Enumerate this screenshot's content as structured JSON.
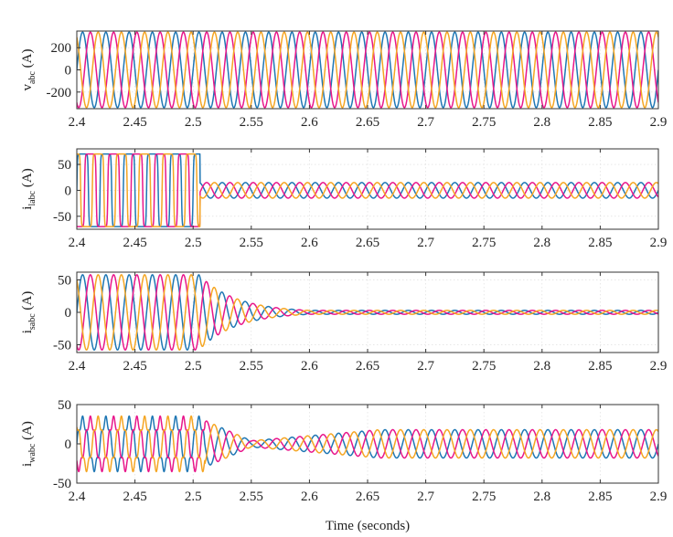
{
  "chart_data": [
    {
      "type": "line",
      "ylabel_main": "v",
      "ylabel_sub": "abc",
      "ylabel_unit": " (A)",
      "xlim": [
        2.4,
        2.9
      ],
      "ylim": [
        -350,
        350
      ],
      "xticks": [
        2.4,
        2.45,
        2.5,
        2.55,
        2.6,
        2.65,
        2.7,
        2.75,
        2.8,
        2.85,
        2.9
      ],
      "xtick_labels": [
        "2.4",
        "2.45",
        "2.5",
        "2.55",
        "2.6",
        "2.65",
        "2.7",
        "2.75",
        "2.8",
        "2.85",
        "2.9"
      ],
      "yticks": [
        -200,
        0,
        200
      ],
      "ytick_labels": [
        "-200",
        "0",
        "200"
      ],
      "grid": true,
      "frequency_hz": 50,
      "phase_colors": [
        "#1f77b4",
        "#e8178b",
        "#f5a623"
      ],
      "series": [
        {
          "phase_deg": 0,
          "segments": [
            {
              "t0": 2.4,
              "t1": 2.9,
              "amp_start": 340,
              "amp_end": 340
            }
          ]
        },
        {
          "phase_deg": -120,
          "segments": [
            {
              "t0": 2.4,
              "t1": 2.9,
              "amp_start": 340,
              "amp_end": 340
            }
          ]
        },
        {
          "phase_deg": 120,
          "segments": [
            {
              "t0": 2.4,
              "t1": 2.9,
              "amp_start": 340,
              "amp_end": 340
            }
          ]
        }
      ]
    },
    {
      "type": "line",
      "ylabel_main": "i",
      "ylabel_sub": "labc",
      "ylabel_unit": " (A)",
      "xlim": [
        2.4,
        2.9
      ],
      "ylim": [
        -75,
        80
      ],
      "xticks": [
        2.4,
        2.45,
        2.5,
        2.55,
        2.6,
        2.65,
        2.7,
        2.75,
        2.8,
        2.85,
        2.9
      ],
      "xtick_labels": [
        "2.4",
        "2.45",
        "2.5",
        "2.55",
        "2.6",
        "2.65",
        "2.7",
        "2.75",
        "2.8",
        "2.85",
        "2.9"
      ],
      "yticks": [
        -50,
        0,
        50
      ],
      "ytick_labels": [
        "-50",
        "0",
        "50"
      ],
      "grid": true,
      "frequency_hz": 50,
      "phase_colors": [
        "#1f77b4",
        "#e8178b",
        "#f5a623"
      ],
      "series": [
        {
          "phase_deg": 0,
          "segments": [
            {
              "t0": 2.4,
              "t1": 2.506,
              "amp_start": 70,
              "amp_end": 70,
              "shape": "square"
            },
            {
              "t0": 2.506,
              "t1": 2.9,
              "amp_start": 15,
              "amp_end": 15
            }
          ]
        },
        {
          "phase_deg": -120,
          "segments": [
            {
              "t0": 2.4,
              "t1": 2.506,
              "amp_start": 70,
              "amp_end": 70,
              "shape": "square"
            },
            {
              "t0": 2.506,
              "t1": 2.9,
              "amp_start": 15,
              "amp_end": 15
            }
          ]
        },
        {
          "phase_deg": 120,
          "segments": [
            {
              "t0": 2.4,
              "t1": 2.506,
              "amp_start": 70,
              "amp_end": 70,
              "shape": "square"
            },
            {
              "t0": 2.506,
              "t1": 2.9,
              "amp_start": 15,
              "amp_end": 15
            }
          ]
        }
      ]
    },
    {
      "type": "line",
      "ylabel_main": "i",
      "ylabel_sub": "sabc",
      "ylabel_unit": " (A)",
      "xlim": [
        2.4,
        2.9
      ],
      "ylim": [
        -62,
        62
      ],
      "xticks": [
        2.4,
        2.45,
        2.5,
        2.55,
        2.6,
        2.65,
        2.7,
        2.75,
        2.8,
        2.85,
        2.9
      ],
      "xtick_labels": [
        "2.4",
        "2.45",
        "2.5",
        "2.55",
        "2.6",
        "2.65",
        "2.7",
        "2.75",
        "2.8",
        "2.85",
        "2.9"
      ],
      "yticks": [
        -50,
        0,
        50
      ],
      "ytick_labels": [
        "-50",
        "0",
        "50"
      ],
      "grid": true,
      "frequency_hz": 50,
      "phase_colors": [
        "#1f77b4",
        "#e8178b",
        "#f5a623"
      ],
      "series": [
        {
          "phase_deg": 0,
          "segments": [
            {
              "t0": 2.4,
              "t1": 2.505,
              "amp_start": 58,
              "amp_end": 58
            },
            {
              "t0": 2.505,
              "t1": 2.6,
              "amp_start": 58,
              "amp_end": 3,
              "decay": "exp"
            },
            {
              "t0": 2.6,
              "t1": 2.9,
              "amp_start": 3,
              "amp_end": 3
            }
          ]
        },
        {
          "phase_deg": -120,
          "segments": [
            {
              "t0": 2.4,
              "t1": 2.505,
              "amp_start": 58,
              "amp_end": 58
            },
            {
              "t0": 2.505,
              "t1": 2.6,
              "amp_start": 58,
              "amp_end": 3,
              "decay": "exp"
            },
            {
              "t0": 2.6,
              "t1": 2.9,
              "amp_start": 3,
              "amp_end": 3
            }
          ]
        },
        {
          "phase_deg": 120,
          "segments": [
            {
              "t0": 2.4,
              "t1": 2.505,
              "amp_start": 58,
              "amp_end": 58
            },
            {
              "t0": 2.505,
              "t1": 2.6,
              "amp_start": 58,
              "amp_end": 3,
              "decay": "exp"
            },
            {
              "t0": 2.6,
              "t1": 2.9,
              "amp_start": 3,
              "amp_end": 3
            }
          ]
        }
      ]
    },
    {
      "type": "line",
      "ylabel_main": "i",
      "ylabel_sub": "wabc",
      "ylabel_unit": " (A)",
      "xlim": [
        2.4,
        2.9
      ],
      "ylim": [
        -50,
        50
      ],
      "xticks": [
        2.4,
        2.45,
        2.5,
        2.55,
        2.6,
        2.65,
        2.7,
        2.75,
        2.8,
        2.85,
        2.9
      ],
      "xtick_labels": [
        "2.4",
        "2.45",
        "2.5",
        "2.55",
        "2.6",
        "2.65",
        "2.7",
        "2.75",
        "2.8",
        "2.85",
        "2.9"
      ],
      "yticks": [
        -50,
        0,
        50
      ],
      "ytick_labels": [
        "-50",
        "0",
        "50"
      ],
      "grid": true,
      "frequency_hz": 50,
      "phase_colors": [
        "#1f77b4",
        "#e8178b",
        "#f5a623"
      ],
      "series": [
        {
          "phase_deg": 0,
          "segments": [
            {
              "t0": 2.4,
              "t1": 2.51,
              "amp_start": 30,
              "amp_end": 30,
              "ripple": true
            },
            {
              "t0": 2.51,
              "t1": 2.55,
              "amp_start": 30,
              "amp_end": 4
            },
            {
              "t0": 2.55,
              "t1": 2.66,
              "amp_start": 4,
              "amp_end": 18
            },
            {
              "t0": 2.66,
              "t1": 2.9,
              "amp_start": 18,
              "amp_end": 18
            }
          ]
        },
        {
          "phase_deg": -120,
          "segments": [
            {
              "t0": 2.4,
              "t1": 2.51,
              "amp_start": 30,
              "amp_end": 30,
              "ripple": true
            },
            {
              "t0": 2.51,
              "t1": 2.55,
              "amp_start": 30,
              "amp_end": 4
            },
            {
              "t0": 2.55,
              "t1": 2.66,
              "amp_start": 4,
              "amp_end": 18
            },
            {
              "t0": 2.66,
              "t1": 2.9,
              "amp_start": 18,
              "amp_end": 18
            }
          ]
        },
        {
          "phase_deg": 120,
          "segments": [
            {
              "t0": 2.4,
              "t1": 2.51,
              "amp_start": 30,
              "amp_end": 30,
              "ripple": true
            },
            {
              "t0": 2.51,
              "t1": 2.55,
              "amp_start": 30,
              "amp_end": 4
            },
            {
              "t0": 2.55,
              "t1": 2.66,
              "amp_start": 4,
              "amp_end": 18
            },
            {
              "t0": 2.66,
              "t1": 2.9,
              "amp_start": 18,
              "amp_end": 18
            }
          ]
        }
      ]
    }
  ],
  "xlabel": "Time (seconds)"
}
